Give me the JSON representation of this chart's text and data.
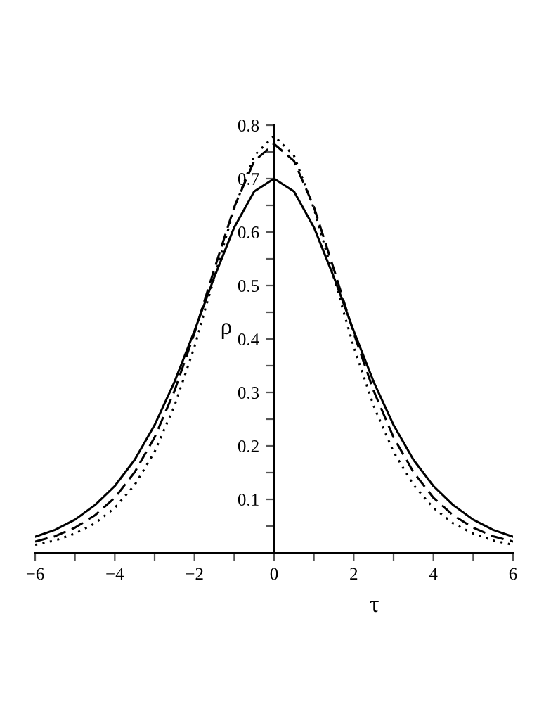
{
  "chart_data": {
    "type": "line",
    "xlabel": "τ",
    "ylabel": "ρ",
    "x": [
      -6,
      -5.5,
      -5,
      -4.5,
      -4,
      -3.5,
      -3,
      -2.5,
      -2,
      -1.5,
      -1,
      -0.5,
      0,
      0.5,
      1,
      1.5,
      2,
      2.5,
      3,
      3.5,
      4,
      4.5,
      5,
      5.5,
      6
    ],
    "series": [
      {
        "color": "#000000",
        "line_style": "solid",
        "values": [
          0.03,
          0.043,
          0.062,
          0.089,
          0.125,
          0.174,
          0.239,
          0.32,
          0.415,
          0.516,
          0.609,
          0.676,
          0.7,
          0.676,
          0.609,
          0.516,
          0.415,
          0.32,
          0.239,
          0.174,
          0.125,
          0.089,
          0.062,
          0.043,
          0.03
        ]
      },
      {
        "color": "#000000",
        "line_style": "dashed",
        "values": [
          0.021,
          0.031,
          0.047,
          0.07,
          0.103,
          0.151,
          0.216,
          0.303,
          0.411,
          0.531,
          0.647,
          0.733,
          0.765,
          0.733,
          0.647,
          0.531,
          0.411,
          0.303,
          0.216,
          0.151,
          0.103,
          0.07,
          0.047,
          0.031,
          0.021
        ]
      },
      {
        "color": "#000000",
        "line_style": "dotted",
        "values": [
          0.015,
          0.023,
          0.036,
          0.055,
          0.084,
          0.127,
          0.189,
          0.275,
          0.385,
          0.515,
          0.644,
          0.743,
          0.78,
          0.743,
          0.644,
          0.515,
          0.385,
          0.275,
          0.189,
          0.127,
          0.084,
          0.055,
          0.036,
          0.023,
          0.015
        ]
      }
    ],
    "xlim": [
      -6,
      6
    ],
    "ylim": [
      0,
      0.8
    ],
    "xticks": [
      {
        "value": -6,
        "label": "−6"
      },
      {
        "value": -5,
        "label": null
      },
      {
        "value": -4,
        "label": "−4"
      },
      {
        "value": -3,
        "label": null
      },
      {
        "value": -2,
        "label": "−2"
      },
      {
        "value": -1,
        "label": null
      },
      0,
      {
        "value": 1,
        "label": null
      },
      2,
      {
        "value": 3,
        "label": null
      },
      4,
      {
        "value": 5,
        "label": null
      },
      6
    ],
    "yticks": [
      {
        "value": 0.05,
        "label": null
      },
      0.1,
      {
        "value": 0.15,
        "label": null
      },
      0.2,
      {
        "value": 0.25,
        "label": null
      },
      0.3,
      {
        "value": 0.35,
        "label": null
      },
      0.4,
      {
        "value": 0.45,
        "label": null
      },
      0.5,
      {
        "value": 0.55,
        "label": null
      },
      0.6,
      {
        "value": 0.65,
        "label": null
      },
      0.7,
      {
        "value": 0.75,
        "label": null
      },
      0.8
    ],
    "grid": false,
    "legend": false,
    "marker": "none"
  }
}
